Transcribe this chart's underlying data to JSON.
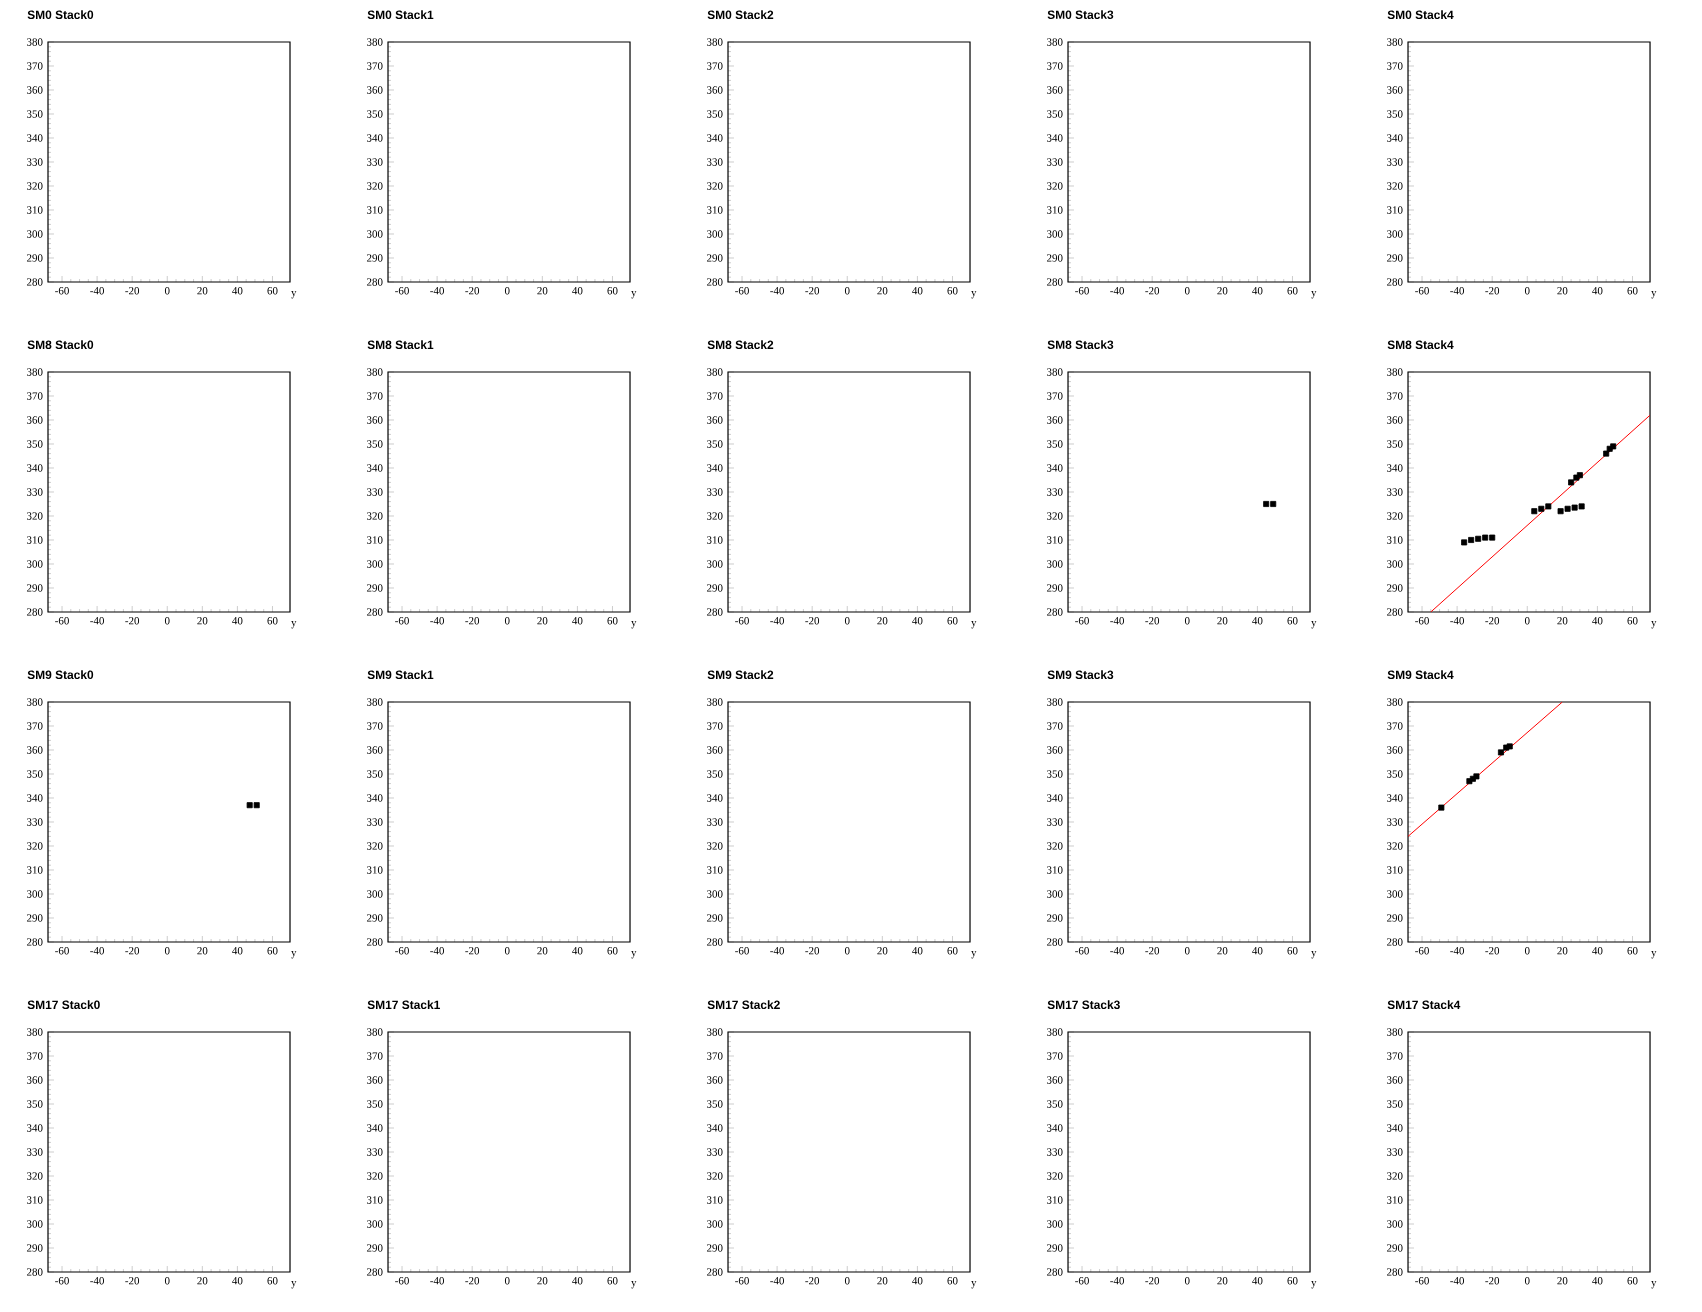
{
  "chart_data": [
    {
      "type": "scatter",
      "title": "SM0 Stack0",
      "xlabel": "y",
      "xlim": [
        -68,
        70
      ],
      "ylim": [
        280,
        380
      ],
      "xticks": [
        -60,
        -40,
        -20,
        0,
        20,
        40,
        60
      ],
      "yticks": [
        280,
        290,
        300,
        310,
        320,
        330,
        340,
        350,
        360,
        370,
        380
      ]
    },
    {
      "type": "scatter",
      "title": "SM0 Stack1",
      "xlabel": "y",
      "xlim": [
        -68,
        70
      ],
      "ylim": [
        280,
        380
      ],
      "xticks": [
        -60,
        -40,
        -20,
        0,
        20,
        40,
        60
      ],
      "yticks": [
        280,
        290,
        300,
        310,
        320,
        330,
        340,
        350,
        360,
        370,
        380
      ]
    },
    {
      "type": "scatter",
      "title": "SM0 Stack2",
      "xlabel": "y",
      "xlim": [
        -68,
        70
      ],
      "ylim": [
        280,
        380
      ],
      "xticks": [
        -60,
        -40,
        -20,
        0,
        20,
        40,
        60
      ],
      "yticks": [
        280,
        290,
        300,
        310,
        320,
        330,
        340,
        350,
        360,
        370,
        380
      ]
    },
    {
      "type": "scatter",
      "title": "SM0 Stack3",
      "xlabel": "y",
      "xlim": [
        -68,
        70
      ],
      "ylim": [
        280,
        380
      ],
      "xticks": [
        -60,
        -40,
        -20,
        0,
        20,
        40,
        60
      ],
      "yticks": [
        280,
        290,
        300,
        310,
        320,
        330,
        340,
        350,
        360,
        370,
        380
      ]
    },
    {
      "type": "scatter",
      "title": "SM0 Stack4",
      "xlabel": "y",
      "xlim": [
        -68,
        70
      ],
      "ylim": [
        280,
        380
      ],
      "xticks": [
        -60,
        -40,
        -20,
        0,
        20,
        40,
        60
      ],
      "yticks": [
        280,
        290,
        300,
        310,
        320,
        330,
        340,
        350,
        360,
        370,
        380
      ]
    },
    {
      "type": "scatter",
      "title": "SM8 Stack0",
      "xlabel": "y",
      "xlim": [
        -68,
        70
      ],
      "ylim": [
        280,
        380
      ],
      "xticks": [
        -60,
        -40,
        -20,
        0,
        20,
        40,
        60
      ],
      "yticks": [
        280,
        290,
        300,
        310,
        320,
        330,
        340,
        350,
        360,
        370,
        380
      ]
    },
    {
      "type": "scatter",
      "title": "SM8 Stack1",
      "xlabel": "y",
      "xlim": [
        -68,
        70
      ],
      "ylim": [
        280,
        380
      ],
      "xticks": [
        -60,
        -40,
        -20,
        0,
        20,
        40,
        60
      ],
      "yticks": [
        280,
        290,
        300,
        310,
        320,
        330,
        340,
        350,
        360,
        370,
        380
      ]
    },
    {
      "type": "scatter",
      "title": "SM8 Stack2",
      "xlabel": "y",
      "xlim": [
        -68,
        70
      ],
      "ylim": [
        280,
        380
      ],
      "xticks": [
        -60,
        -40,
        -20,
        0,
        20,
        40,
        60
      ],
      "yticks": [
        280,
        290,
        300,
        310,
        320,
        330,
        340,
        350,
        360,
        370,
        380
      ]
    },
    {
      "type": "scatter",
      "title": "SM8 Stack3",
      "xlabel": "y",
      "xlim": [
        -68,
        70
      ],
      "ylim": [
        280,
        380
      ],
      "xticks": [
        -60,
        -40,
        -20,
        0,
        20,
        40,
        60
      ],
      "yticks": [
        280,
        290,
        300,
        310,
        320,
        330,
        340,
        350,
        360,
        370,
        380
      ],
      "series": [
        {
          "color": "#000000",
          "marker": "square",
          "x": [
            45,
            49
          ],
          "values": [
            325,
            325
          ]
        }
      ]
    },
    {
      "type": "scatter",
      "title": "SM8 Stack4",
      "xlabel": "y",
      "xlim": [
        -68,
        70
      ],
      "ylim": [
        280,
        380
      ],
      "xticks": [
        -60,
        -40,
        -20,
        0,
        20,
        40,
        60
      ],
      "yticks": [
        280,
        290,
        300,
        310,
        320,
        330,
        340,
        350,
        360,
        370,
        380
      ],
      "series": [
        {
          "color": "#000000",
          "marker": "square",
          "x": [
            -36,
            -32,
            -28,
            -24,
            -20,
            4,
            8,
            12,
            19,
            23,
            27,
            31,
            25,
            28,
            30,
            45,
            47,
            49
          ],
          "values": [
            309,
            310,
            310.5,
            311,
            311,
            322,
            323,
            324,
            322,
            323,
            323.5,
            324,
            334,
            336,
            337,
            346,
            348,
            349
          ]
        },
        {
          "type": "line",
          "color": "#ff0000",
          "x": [
            -55,
            70
          ],
          "values": [
            280,
            362
          ]
        }
      ]
    },
    {
      "type": "scatter",
      "title": "SM9 Stack0",
      "xlabel": "y",
      "xlim": [
        -68,
        70
      ],
      "ylim": [
        280,
        380
      ],
      "xticks": [
        -60,
        -40,
        -20,
        0,
        20,
        40,
        60
      ],
      "yticks": [
        280,
        290,
        300,
        310,
        320,
        330,
        340,
        350,
        360,
        370,
        380
      ],
      "series": [
        {
          "color": "#000000",
          "marker": "square",
          "x": [
            47,
            51
          ],
          "values": [
            337,
            337
          ]
        }
      ]
    },
    {
      "type": "scatter",
      "title": "SM9 Stack1",
      "xlabel": "y",
      "xlim": [
        -68,
        70
      ],
      "ylim": [
        280,
        380
      ],
      "xticks": [
        -60,
        -40,
        -20,
        0,
        20,
        40,
        60
      ],
      "yticks": [
        280,
        290,
        300,
        310,
        320,
        330,
        340,
        350,
        360,
        370,
        380
      ]
    },
    {
      "type": "scatter",
      "title": "SM9 Stack2",
      "xlabel": "y",
      "xlim": [
        -68,
        70
      ],
      "ylim": [
        280,
        380
      ],
      "xticks": [
        -60,
        -40,
        -20,
        0,
        20,
        40,
        60
      ],
      "yticks": [
        280,
        290,
        300,
        310,
        320,
        330,
        340,
        350,
        360,
        370,
        380
      ]
    },
    {
      "type": "scatter",
      "title": "SM9 Stack3",
      "xlabel": "y",
      "xlim": [
        -68,
        70
      ],
      "ylim": [
        280,
        380
      ],
      "xticks": [
        -60,
        -40,
        -20,
        0,
        20,
        40,
        60
      ],
      "yticks": [
        280,
        290,
        300,
        310,
        320,
        330,
        340,
        350,
        360,
        370,
        380
      ]
    },
    {
      "type": "scatter",
      "title": "SM9 Stack4",
      "xlabel": "y",
      "xlim": [
        -68,
        70
      ],
      "ylim": [
        280,
        380
      ],
      "xticks": [
        -60,
        -40,
        -20,
        0,
        20,
        40,
        60
      ],
      "yticks": [
        280,
        290,
        300,
        310,
        320,
        330,
        340,
        350,
        360,
        370,
        380
      ],
      "series": [
        {
          "color": "#000000",
          "marker": "square",
          "x": [
            -49,
            -33,
            -31,
            -29,
            -15,
            -12,
            -10
          ],
          "values": [
            336,
            347,
            348,
            349,
            359,
            361,
            361.5
          ]
        },
        {
          "type": "line",
          "color": "#ff0000",
          "x": [
            -68,
            20
          ],
          "values": [
            324,
            380
          ]
        }
      ]
    },
    {
      "type": "scatter",
      "title": "SM17 Stack0",
      "xlabel": "y",
      "xlim": [
        -68,
        70
      ],
      "ylim": [
        280,
        380
      ],
      "xticks": [
        -60,
        -40,
        -20,
        0,
        20,
        40,
        60
      ],
      "yticks": [
        280,
        290,
        300,
        310,
        320,
        330,
        340,
        350,
        360,
        370,
        380
      ]
    },
    {
      "type": "scatter",
      "title": "SM17 Stack1",
      "xlabel": "y",
      "xlim": [
        -68,
        70
      ],
      "ylim": [
        280,
        380
      ],
      "xticks": [
        -60,
        -40,
        -20,
        0,
        20,
        40,
        60
      ],
      "yticks": [
        280,
        290,
        300,
        310,
        320,
        330,
        340,
        350,
        360,
        370,
        380
      ]
    },
    {
      "type": "scatter",
      "title": "SM17 Stack2",
      "xlabel": "y",
      "xlim": [
        -68,
        70
      ],
      "ylim": [
        280,
        380
      ],
      "xticks": [
        -60,
        -40,
        -20,
        0,
        20,
        40,
        60
      ],
      "yticks": [
        280,
        290,
        300,
        310,
        320,
        330,
        340,
        350,
        360,
        370,
        380
      ]
    },
    {
      "type": "scatter",
      "title": "SM17 Stack3",
      "xlabel": "y",
      "xlim": [
        -68,
        70
      ],
      "ylim": [
        280,
        380
      ],
      "xticks": [
        -60,
        -40,
        -20,
        0,
        20,
        40,
        60
      ],
      "yticks": [
        280,
        290,
        300,
        310,
        320,
        330,
        340,
        350,
        360,
        370,
        380
      ]
    },
    {
      "type": "scatter",
      "title": "SM17 Stack4",
      "xlabel": "y",
      "xlim": [
        -68,
        70
      ],
      "ylim": [
        280,
        380
      ],
      "xticks": [
        -60,
        -40,
        -20,
        0,
        20,
        40,
        60
      ],
      "yticks": [
        280,
        290,
        300,
        310,
        320,
        330,
        340,
        350,
        360,
        370,
        380
      ]
    }
  ]
}
